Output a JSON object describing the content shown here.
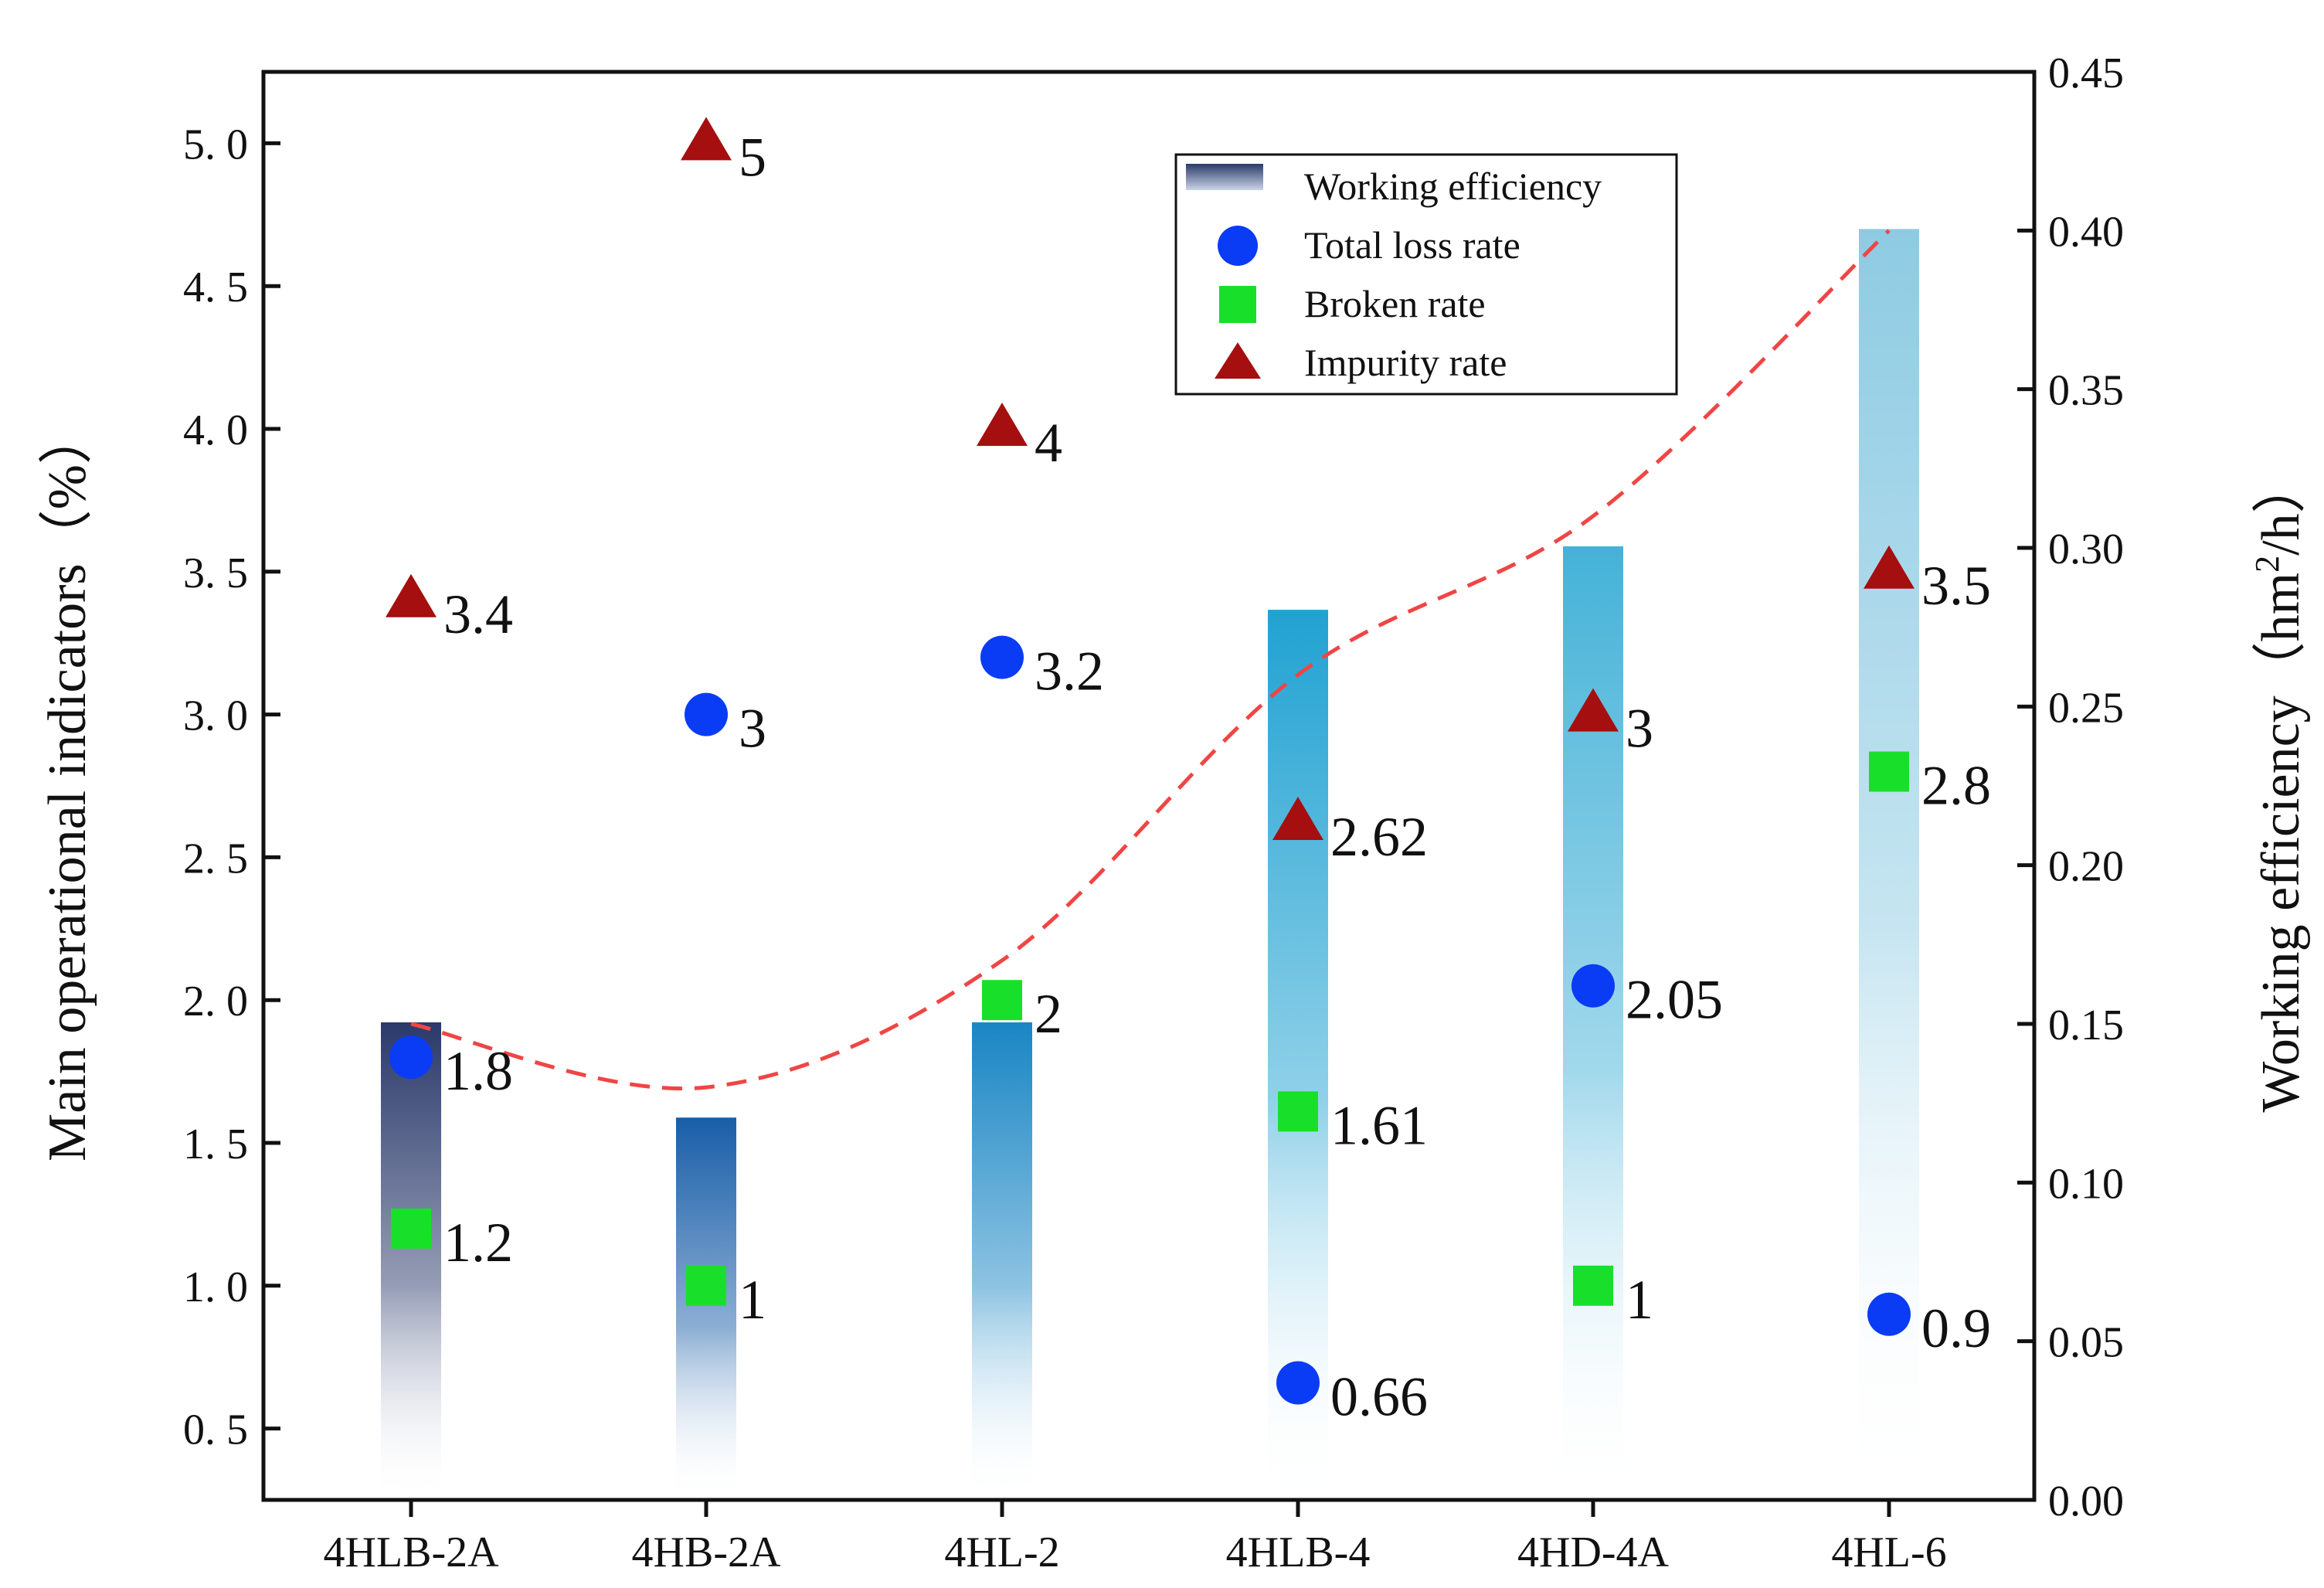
{
  "chart_data": {
    "type": "bar+scatter",
    "categories": [
      "4HLB-2A",
      "4HB-2A",
      "4HL-2",
      "4HLB-4",
      "4HD-4A",
      "4HL-6"
    ],
    "left_axis": {
      "label": "Main operational indicators（%）",
      "ylim": [
        0.25,
        5.25
      ],
      "ticks": [
        0.5,
        1.0,
        1.5,
        2.0,
        2.5,
        3.0,
        3.5,
        4.0,
        4.5,
        5.0
      ],
      "tick_labels": [
        "0. 5",
        "1. 0",
        "1. 5",
        "2. 0",
        "2. 5",
        "3. 0",
        "3. 5",
        "4. 0",
        "4. 5",
        "5. 0"
      ]
    },
    "right_axis": {
      "label_main": "Working efficiency",
      "label_unit_prefix": "（hm",
      "label_unit_sup": "2",
      "label_unit_suffix": "/h）",
      "ylim": [
        0,
        0.45
      ],
      "ticks": [
        0,
        0.05,
        0.1,
        0.15,
        0.2,
        0.25,
        0.3,
        0.35,
        0.4,
        0.45
      ],
      "tick_labels": [
        "0.00",
        "0.05",
        "0.10",
        "0.15",
        "0.20",
        "0.25",
        "0.30",
        "0.35",
        "0.40",
        "0.45"
      ]
    },
    "series": [
      {
        "name": "Working efficiency",
        "kind": "bar",
        "axis": "right",
        "values": [
          0.15,
          0.12,
          0.15,
          0.28,
          0.3,
          0.4
        ],
        "colors": [
          "#2b3a6b",
          "#1a5ea8",
          "#1a86c4",
          "#21a2d2",
          "#45b2d8",
          "#8ecbe3"
        ]
      },
      {
        "name": "Total loss rate",
        "kind": "scatter",
        "marker": "circle",
        "color": "#0a3cf5",
        "axis": "left",
        "values": [
          1.8,
          3,
          3.2,
          0.66,
          2.05,
          0.9
        ],
        "labels": [
          "1.8",
          "3",
          "3.2",
          "0.66",
          "2.05",
          "0.9"
        ]
      },
      {
        "name": "Broken rate",
        "kind": "scatter",
        "marker": "square",
        "color": "#18e02a",
        "axis": "left",
        "values": [
          1.2,
          1,
          2,
          1.61,
          1,
          2.8
        ],
        "labels": [
          "1.2",
          "1",
          "2",
          "1.61",
          "1",
          "2.8"
        ]
      },
      {
        "name": "Impurity rate",
        "kind": "scatter",
        "marker": "triangle",
        "color": "#a50f0f",
        "axis": "left",
        "values": [
          3.4,
          5,
          4,
          2.62,
          3,
          3.5
        ],
        "labels": [
          "3.4",
          "5",
          "4",
          "2.62",
          "3",
          "3.5"
        ]
      }
    ],
    "trend_line": {
      "axis": "right",
      "style": "dashed",
      "color": "#f04545",
      "values": [
        0.15,
        0.13,
        0.17,
        0.26,
        0.31,
        0.4
      ]
    },
    "legend": {
      "position": "top-center-right",
      "entries": [
        "Working efficiency",
        "Total loss rate",
        "Broken rate",
        "Impurity rate"
      ]
    }
  }
}
